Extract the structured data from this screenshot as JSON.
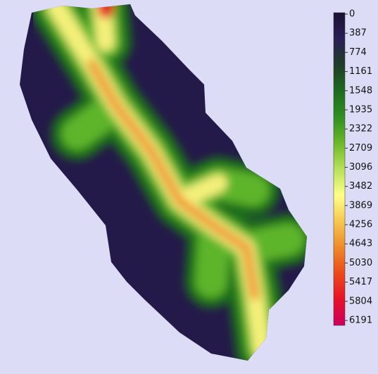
{
  "legend": {
    "lim": [
      0,
      6191
    ],
    "ticks": [
      0,
      387,
      774,
      1161,
      1548,
      1935,
      2322,
      2709,
      3096,
      3482,
      3869,
      4256,
      4643,
      5030,
      5417,
      5804,
      6191
    ],
    "colors": [
      "#1b1133",
      "#2a1f55",
      "#1f3d2a",
      "#1d6a1d",
      "#2f8f22",
      "#6cb828",
      "#b8e05a",
      "#ffff88",
      "#f6c850",
      "#ee8a28",
      "#ec4a1a",
      "#e81028",
      "#cc0060"
    ]
  }
}
